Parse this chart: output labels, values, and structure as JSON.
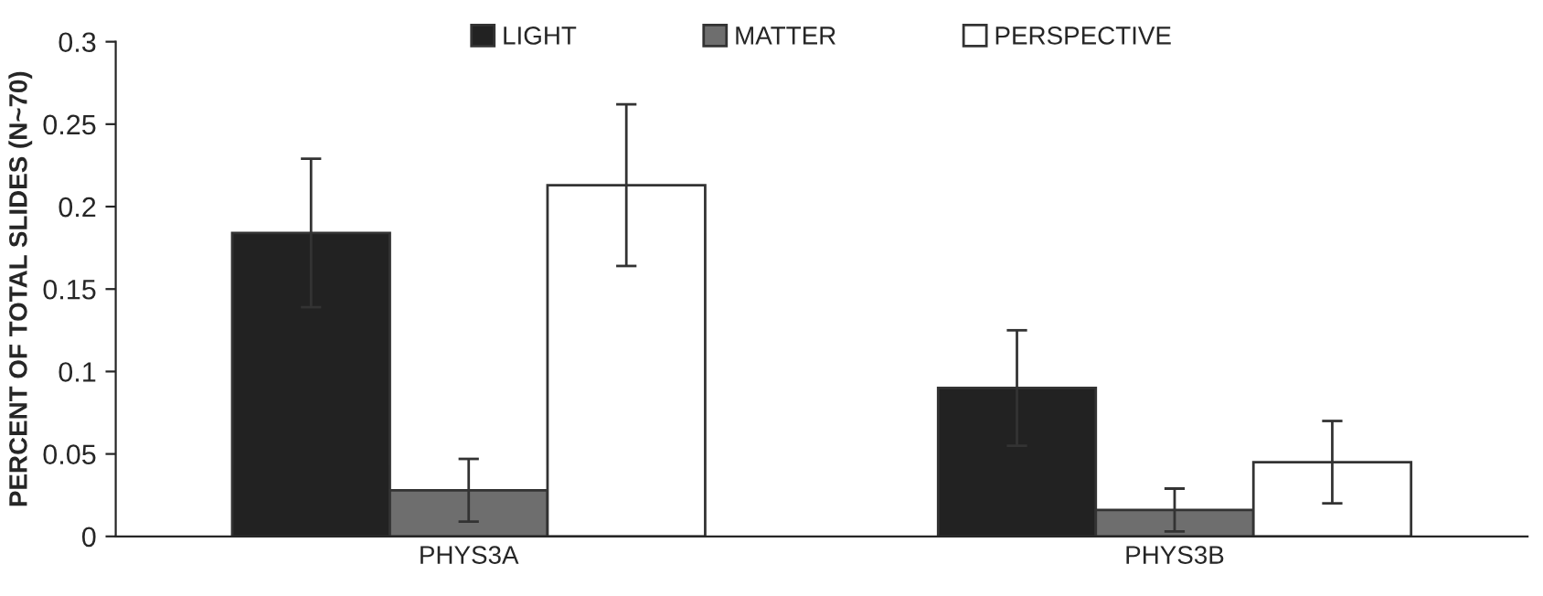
{
  "chart_data": {
    "type": "bar",
    "ylabel": "PERCENT OF TOTAL SLIDES (N~70)",
    "categories": [
      "PHYS3A",
      "PHYS3B"
    ],
    "series": [
      {
        "name": "LIGHT",
        "color": "#222222",
        "values": [
          0.184,
          0.09
        ],
        "errors": [
          0.045,
          0.035
        ]
      },
      {
        "name": "MATTER",
        "color": "#6e6e6e",
        "values": [
          0.028,
          0.016
        ],
        "errors": [
          0.019,
          0.013
        ]
      },
      {
        "name": "PERSPECTIVE",
        "color": "#ffffff",
        "values": [
          0.213,
          0.045
        ],
        "errors": [
          0.049,
          0.025
        ]
      }
    ],
    "ylim": [
      0,
      0.3
    ],
    "yticks": [
      0,
      0.05,
      0.1,
      0.15,
      0.2,
      0.25,
      0.3
    ],
    "grid": false,
    "legend": "top"
  }
}
